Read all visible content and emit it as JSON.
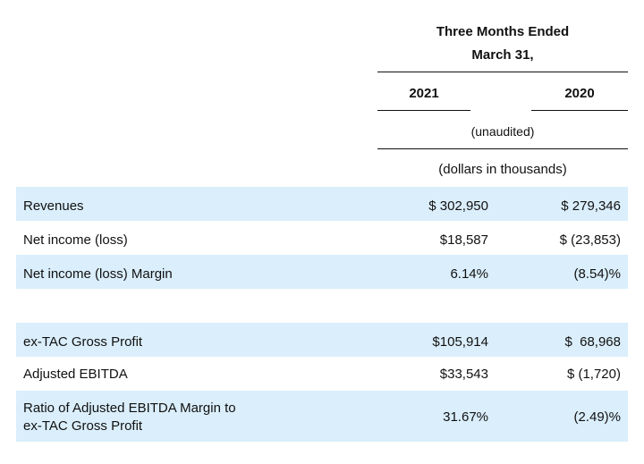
{
  "header": {
    "period_line1": "Three Months Ended",
    "period_line2": "March 31,",
    "col_2021": "2021",
    "col_2020": "2020",
    "unaudited": "(unaudited)",
    "units": "(dollars in thousands)"
  },
  "rows": [
    {
      "label": "Revenues",
      "v2021": "$ 302,950",
      "v2020": "$ 279,346"
    },
    {
      "label": "Net income (loss)",
      "v2021": "$18,587",
      "v2020": "$ (23,853)"
    },
    {
      "label": "Net income (loss) Margin",
      "v2021": "6.14%",
      "v2020": "(8.54)%"
    },
    {
      "label": "",
      "v2021": "",
      "v2020": ""
    },
    {
      "label": "ex-TAC Gross Profit",
      "v2021": "$105,914",
      "v2020": "$  68,968"
    },
    {
      "label": "Adjusted EBITDA",
      "v2021": "$33,543",
      "v2020": "$ (1,720)"
    },
    {
      "label_line1": "Ratio of Adjusted EBITDA Margin to",
      "label_line2": "ex-TAC Gross Profit",
      "v2021": "31.67%",
      "v2020": "(2.49)%"
    }
  ]
}
